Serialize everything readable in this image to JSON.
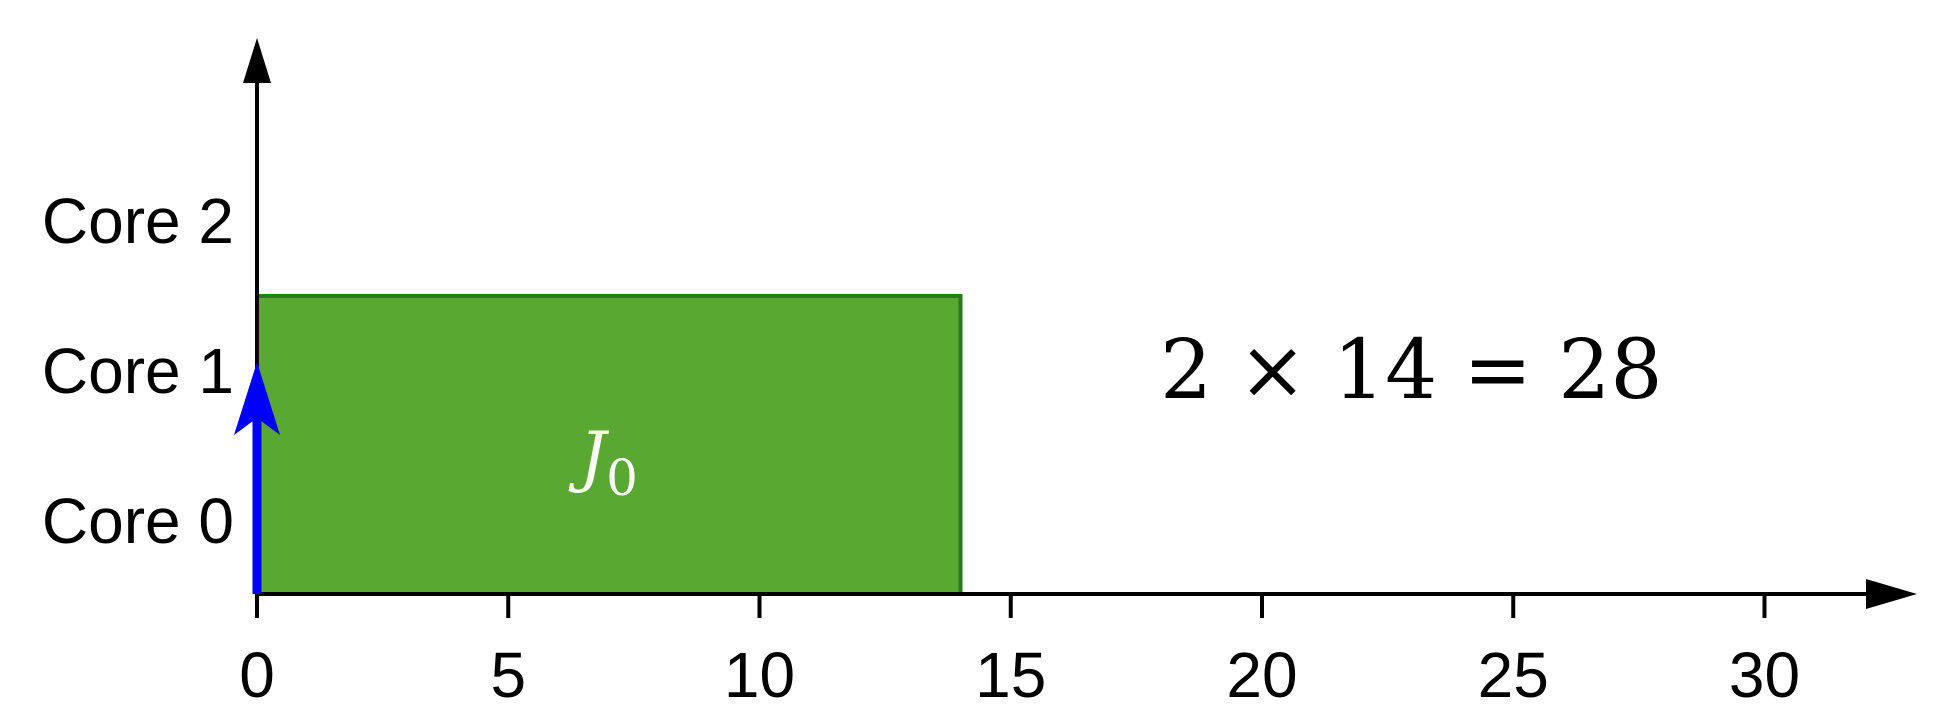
{
  "chart_data": {
    "type": "gantt",
    "title": "",
    "x_axis": {
      "range": [
        0,
        32
      ],
      "ticks": [
        0,
        5,
        10,
        15,
        20,
        25,
        30
      ],
      "tick_labels": [
        "0",
        "5",
        "10",
        "15",
        "20",
        "25",
        "30"
      ]
    },
    "y_axis": {
      "rows": [
        "Core 0",
        "Core 1",
        "Core 2"
      ]
    },
    "jobs": [
      {
        "label_base": "J",
        "label_sub": "0",
        "start": 0,
        "end": 14,
        "cores": [
          0,
          1
        ],
        "color": "#58a832",
        "border": "#2a7a1a"
      }
    ],
    "release_arrows": [
      {
        "time": 0,
        "color": "#0000ff"
      }
    ],
    "annotation": "2 × 14 = 28"
  }
}
